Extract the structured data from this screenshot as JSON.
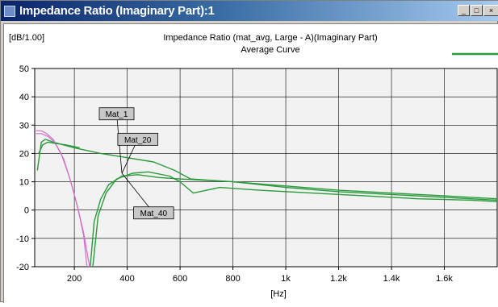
{
  "window": {
    "title": "Impedance Ratio (Imaginary Part):1",
    "icons": [
      "chart-icon",
      "minimize-icon",
      "maximize-icon",
      "close-icon"
    ]
  },
  "colors": {
    "green": "#2a9a3c",
    "magenta": "#d070c8",
    "grid": "#000000",
    "plot_bg": "#f2f2f2",
    "title_bar": "#0a246a"
  },
  "chart_data": {
    "type": "line",
    "title": "Impedance Ratio (mat_avg, Large - A)(Imaginary Part)",
    "subtitle": "Average Curve",
    "unit_label": "[dB/1.00]",
    "xlabel": "[Hz]",
    "xlim": [
      50,
      1800
    ],
    "ylim": [
      -20,
      50
    ],
    "grid": true,
    "x_ticks": [
      {
        "v": 200,
        "label": "200"
      },
      {
        "v": 400,
        "label": "400"
      },
      {
        "v": 600,
        "label": "600"
      },
      {
        "v": 800,
        "label": "800"
      },
      {
        "v": 1000,
        "label": "1k"
      },
      {
        "v": 1200,
        "label": "1.2k"
      },
      {
        "v": 1400,
        "label": "1.4k"
      },
      {
        "v": 1600,
        "label": "1.6k"
      }
    ],
    "y_ticks": [
      {
        "v": 50,
        "label": "50"
      },
      {
        "v": 40,
        "label": "40"
      },
      {
        "v": 30,
        "label": "30"
      },
      {
        "v": 20,
        "label": "20"
      },
      {
        "v": 10,
        "label": "10"
      },
      {
        "v": 0,
        "label": "0"
      },
      {
        "v": -10,
        "label": "-10"
      },
      {
        "v": -20,
        "label": "-20"
      }
    ],
    "series": [
      {
        "color": "#2a9a3c",
        "width": 1.4,
        "points": [
          [
            60,
            14
          ],
          [
            75,
            24
          ],
          [
            90,
            25
          ],
          [
            120,
            24
          ],
          [
            200,
            22
          ],
          [
            300,
            20
          ],
          [
            400,
            18.5
          ],
          [
            500,
            17
          ],
          [
            580,
            14
          ],
          [
            640,
            11
          ],
          [
            800,
            10
          ],
          [
            1000,
            8
          ],
          [
            1200,
            6.5
          ],
          [
            1400,
            5.5
          ],
          [
            1600,
            4.5
          ],
          [
            1800,
            3.5
          ]
        ]
      },
      {
        "color": "#2a9a3c",
        "width": 1.4,
        "points": [
          [
            270,
            -20
          ],
          [
            290,
            -2
          ],
          [
            320,
            6
          ],
          [
            360,
            11
          ],
          [
            420,
            13
          ],
          [
            480,
            13.5
          ],
          [
            560,
            12
          ],
          [
            600,
            10
          ],
          [
            650,
            6
          ],
          [
            750,
            8
          ],
          [
            900,
            7
          ],
          [
            1100,
            6
          ],
          [
            1300,
            5
          ],
          [
            1500,
            4
          ],
          [
            1700,
            3.5
          ],
          [
            1800,
            3
          ]
        ]
      },
      {
        "color": "#2a9a3c",
        "width": 1.4,
        "points": [
          [
            260,
            -20
          ],
          [
            275,
            -4
          ],
          [
            300,
            4
          ],
          [
            330,
            9
          ],
          [
            380,
            12
          ],
          [
            440,
            12.5
          ],
          [
            520,
            11.5
          ],
          [
            600,
            11
          ],
          [
            700,
            10.5
          ],
          [
            800,
            10
          ],
          [
            1000,
            8.5
          ],
          [
            1200,
            7
          ],
          [
            1400,
            6
          ],
          [
            1600,
            5
          ],
          [
            1800,
            4
          ]
        ]
      },
      {
        "color": "#d070c8",
        "width": 1.2,
        "points": [
          [
            55,
            28
          ],
          [
            75,
            28
          ],
          [
            95,
            27
          ],
          [
            120,
            25
          ],
          [
            150,
            20
          ],
          [
            180,
            12
          ],
          [
            210,
            2
          ],
          [
            235,
            -8
          ],
          [
            250,
            -16
          ],
          [
            258,
            -20
          ]
        ]
      },
      {
        "color": "#d070c8",
        "width": 1.2,
        "points": [
          [
            55,
            27
          ],
          [
            75,
            27
          ],
          [
            100,
            26
          ],
          [
            125,
            24
          ],
          [
            160,
            18
          ],
          [
            190,
            9
          ],
          [
            215,
            0
          ],
          [
            235,
            -9
          ],
          [
            248,
            -20
          ]
        ]
      },
      {
        "color": "#2a9a3c",
        "width": 1.4,
        "points": [
          [
            65,
            20
          ],
          [
            80,
            23
          ],
          [
            100,
            24
          ],
          [
            130,
            23.5
          ],
          [
            170,
            23
          ],
          [
            220,
            22
          ]
        ]
      }
    ],
    "annotations": [
      {
        "text": "Mat_1",
        "x": 360,
        "y": 34,
        "to_x": 380,
        "to_y": 13
      },
      {
        "text": "Mat_20",
        "x": 440,
        "y": 25,
        "to_x": 380,
        "to_y": 13
      },
      {
        "text": "Mat_40",
        "x": 500,
        "y": -1,
        "to_x": 380,
        "to_y": 13
      }
    ],
    "legend_line": {
      "color": "#2a9a3c",
      "position": "top-right"
    }
  }
}
